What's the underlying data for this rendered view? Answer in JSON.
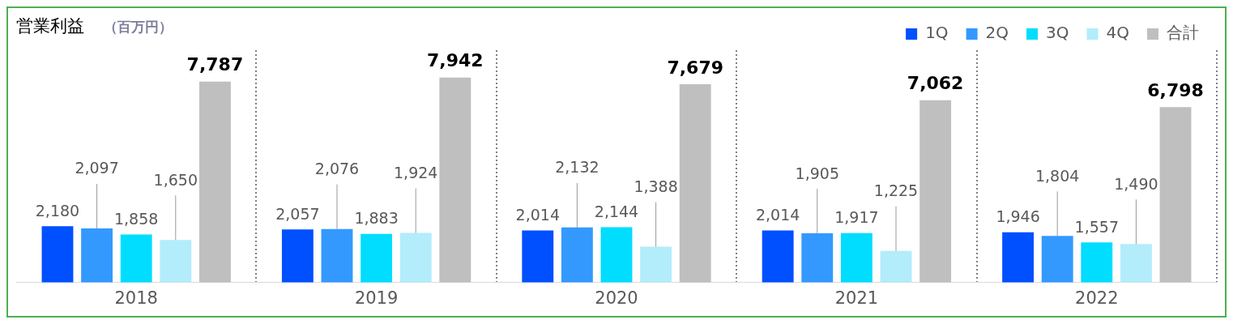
{
  "chart_data": {
    "type": "bar",
    "title": "営業利益",
    "subtitle": "（百万円）",
    "categories": [
      "2018",
      "2019",
      "2020",
      "2021",
      "2022"
    ],
    "series": [
      {
        "name": "1Q",
        "color": "#0050ff",
        "values": [
          2180,
          2057,
          2014,
          2014,
          1946
        ],
        "value_labels": [
          "2,180",
          "2,057",
          "2,014",
          "2,014",
          "1,946"
        ]
      },
      {
        "name": "2Q",
        "color": "#3399ff",
        "values": [
          2097,
          2076,
          2132,
          1905,
          1804
        ],
        "value_labels": [
          "2,097",
          "2,076",
          "2,132",
          "1,905",
          "1,804"
        ]
      },
      {
        "name": "3Q",
        "color": "#00ddff",
        "values": [
          1858,
          1883,
          2144,
          1917,
          1557
        ],
        "value_labels": [
          "1,858",
          "1,883",
          "2,144",
          "1,917",
          "1,557"
        ]
      },
      {
        "name": "4Q",
        "color": "#b3ecfb",
        "values": [
          1650,
          1924,
          1388,
          1225,
          1490
        ],
        "value_labels": [
          "1,650",
          "1,924",
          "1,388",
          "1,225",
          "1,490"
        ]
      },
      {
        "name": "合計",
        "color": "#bfbfbf",
        "values": [
          7787,
          7942,
          7679,
          7062,
          6798
        ],
        "value_labels": [
          "7,787",
          "7,942",
          "7,679",
          "7,062",
          "6,798"
        ]
      }
    ],
    "legend": "top right",
    "grid": "x"
  }
}
